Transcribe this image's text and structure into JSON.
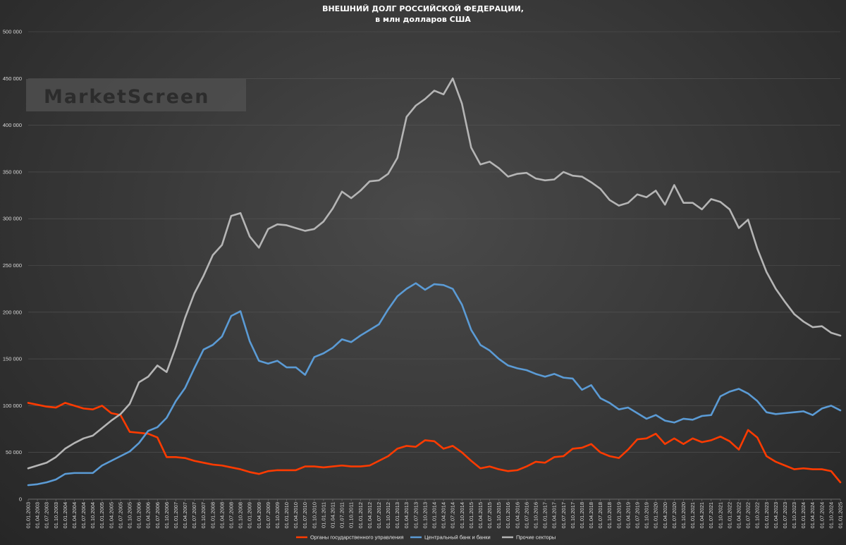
{
  "chart_data": {
    "type": "line",
    "title": [
      "ВНЕШНИЙ ДОЛГ РОССИЙСКОЙ ФЕДЕРАЦИИ,",
      "в млн долларов США"
    ],
    "watermark": "MarketScreen",
    "ylim": [
      0,
      500000
    ],
    "yticks": [
      "0",
      "50 000",
      "100 000",
      "150 000",
      "200 000",
      "250 000",
      "300 000",
      "350 000",
      "400 000",
      "450 000",
      "500 000"
    ],
    "grid": true,
    "legend_position": "bottom",
    "x": [
      "01.01.2003",
      "01.04.2003",
      "01.07.2003",
      "01.10.2003",
      "01.01.2004",
      "01.04.2004",
      "01.07.2004",
      "01.10.2004",
      "01.01.2005",
      "01.04.2005",
      "01.07.2005",
      "01.10.2005",
      "01.01.2006",
      "01.04.2006",
      "01.07.2006",
      "01.10.2006",
      "01.01.2007",
      "01.04.2007",
      "01.07.2007",
      "01.10.2007",
      "01.01.2008",
      "01.04.2008",
      "01.07.2008",
      "01.10.2008",
      "01.01.2009",
      "01.04.2009",
      "01.07.2009",
      "01.10.2009",
      "01.01.2010",
      "01.04.2010",
      "01.07.2010",
      "01.10.2010",
      "01.01.2011",
      "01.04.2011",
      "01.07.2011",
      "01.10.2011",
      "01.01.2012",
      "01.04.2012",
      "01.07.2012",
      "01.10.2012",
      "01.01.2013",
      "01.04.2013",
      "01.07.2013",
      "01.10.2013",
      "01.01.2014",
      "01.04.2014",
      "01.07.2014",
      "01.10.2014",
      "01.01.2015",
      "01.04.2015",
      "01.07.2015",
      "01.10.2015",
      "01.01.2016",
      "01.04.2016",
      "01.07.2016",
      "01.10.2016",
      "01.01.2017",
      "01.04.2017",
      "01.07.2017",
      "01.10.2017",
      "01.01.2018",
      "01.04.2018",
      "01.07.2018",
      "01.10.2018",
      "01.01.2019",
      "01.04.2019",
      "01.07.2019",
      "01.10.2019",
      "01.01.2020",
      "01.04.2020",
      "01.07.2020",
      "01.10.2020",
      "01.01.2021",
      "01.04.2021",
      "01.07.2021",
      "01.10.2021",
      "01.01.2022",
      "01.04.2022",
      "01.07.2022",
      "01.10.2022",
      "01.01.2023",
      "01.04.2023",
      "01.07.2023",
      "01.10.2023",
      "01.01.2024",
      "01.04.2024",
      "01.07.2024",
      "01.10.2024",
      "01.01.2025"
    ],
    "series": [
      {
        "name": "Органы государственного управления",
        "color": "#ff3b00",
        "values": [
          103000,
          101000,
          99000,
          98000,
          103000,
          100000,
          97000,
          96000,
          100000,
          92000,
          90000,
          72000,
          71000,
          70000,
          66000,
          45000,
          45000,
          44000,
          41000,
          39000,
          37000,
          36000,
          34000,
          32000,
          29000,
          27000,
          30000,
          31000,
          31000,
          31000,
          35000,
          35000,
          34000,
          35000,
          36000,
          35000,
          35000,
          36000,
          41000,
          46000,
          54000,
          57000,
          56000,
          63000,
          62000,
          54000,
          57000,
          50000,
          41000,
          33000,
          35000,
          32000,
          30000,
          31000,
          35000,
          40000,
          39000,
          45000,
          46000,
          54000,
          55000,
          59000,
          50000,
          46000,
          44000,
          53000,
          64000,
          65000,
          70000,
          59000,
          65000,
          59000,
          65000,
          61000,
          63000,
          67000,
          62000,
          53000,
          74000,
          66000,
          46000,
          40000,
          36000,
          32000,
          33000,
          32000,
          32000,
          30000,
          18000
        ]
      },
      {
        "name": "Центральный банк и банки",
        "color": "#5b9bd5",
        "values": [
          15000,
          16000,
          18000,
          21000,
          27000,
          28000,
          28000,
          28000,
          36000,
          41000,
          46000,
          51000,
          60000,
          73000,
          77000,
          87000,
          105000,
          119000,
          140000,
          160000,
          165000,
          174000,
          196000,
          201000,
          169000,
          148000,
          145000,
          148000,
          141000,
          141000,
          133000,
          152000,
          156000,
          162000,
          171000,
          168000,
          175000,
          181000,
          187000,
          203000,
          217000,
          225000,
          231000,
          224000,
          230000,
          229000,
          225000,
          208000,
          181000,
          165000,
          159000,
          150000,
          143000,
          140000,
          138000,
          134000,
          131000,
          134000,
          130000,
          129000,
          117000,
          122000,
          108000,
          103000,
          96000,
          98000,
          92000,
          86000,
          90000,
          84000,
          82000,
          86000,
          85000,
          89000,
          90000,
          110000,
          115000,
          118000,
          113000,
          105000,
          93000,
          91000,
          92000,
          93000,
          94000,
          90000,
          97000,
          100000,
          95000
        ]
      },
      {
        "name": "Прочие секторы",
        "color": "#b5b5b5",
        "values": [
          33000,
          36000,
          39000,
          45000,
          54000,
          60000,
          65000,
          68000,
          76000,
          84000,
          91000,
          102000,
          125000,
          131000,
          143000,
          136000,
          163000,
          194000,
          220000,
          239000,
          261000,
          272000,
          303000,
          306000,
          281000,
          269000,
          289000,
          294000,
          293000,
          290000,
          287000,
          289000,
          297000,
          311000,
          329000,
          322000,
          330000,
          340000,
          341000,
          348000,
          365000,
          409000,
          421000,
          428000,
          437000,
          433000,
          450000,
          423000,
          376000,
          358000,
          361000,
          354000,
          345000,
          348000,
          349000,
          343000,
          341000,
          342000,
          350000,
          346000,
          345000,
          339000,
          332000,
          320000,
          314000,
          317000,
          326000,
          323000,
          330000,
          315000,
          336000,
          317000,
          317000,
          310000,
          321000,
          318000,
          310000,
          290000,
          299000,
          268000,
          243000,
          225000,
          211000,
          198000,
          190000,
          184000,
          185000,
          178000,
          175000
        ]
      }
    ]
  }
}
